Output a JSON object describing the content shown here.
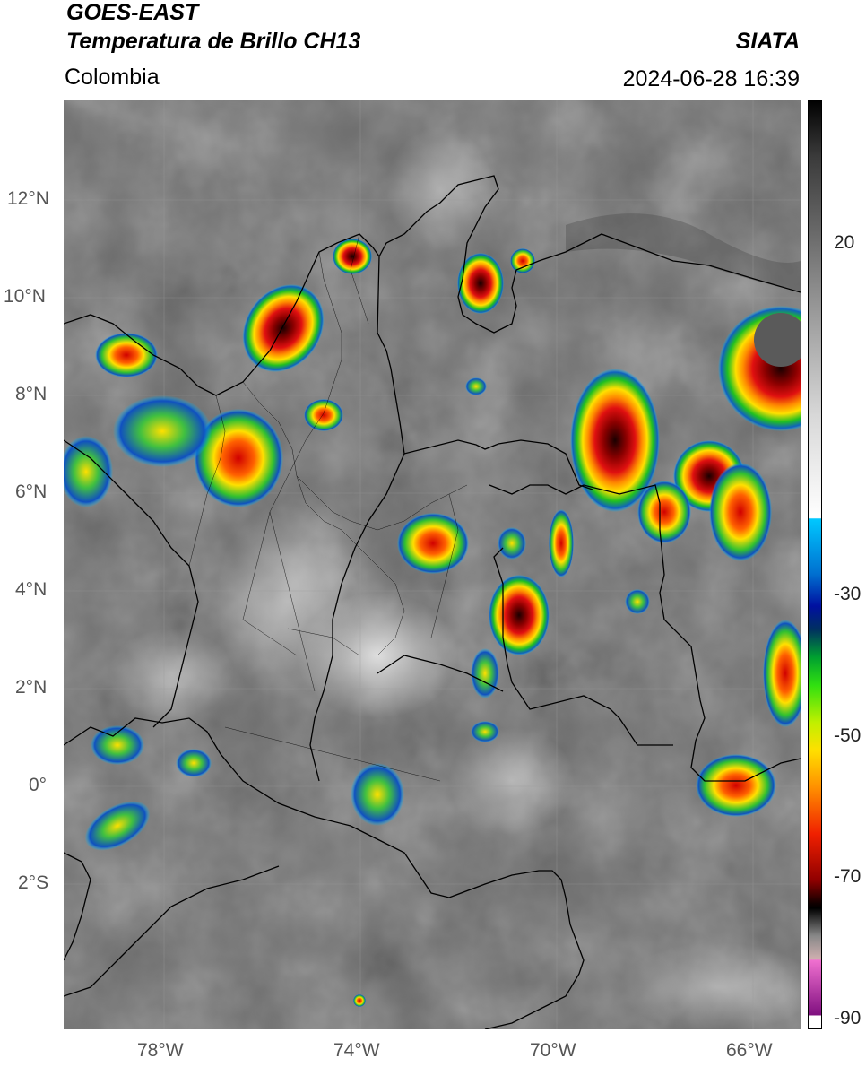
{
  "header": {
    "satellite": "GOES-EAST",
    "product": "Temperatura de Brillo CH13",
    "organization": "SIATA",
    "region": "Colombia",
    "datetime": "2024-06-28 16:39"
  },
  "map": {
    "lat_range": [
      -4.9,
      14.1
    ],
    "lon_range": [
      -80.0,
      -65.0
    ],
    "lat_ticks": [
      "12°N",
      "10°N",
      "8°N",
      "6°N",
      "4°N",
      "2°N",
      "0°",
      "2°S"
    ],
    "lon_ticks": [
      "78°W",
      "74°W",
      "70°W",
      "66°W"
    ],
    "base_color": "#6e6e6e",
    "storm_cells": [
      {
        "name": "cell-caribbean-coast",
        "lon": -75.6,
        "lat": 9.3,
        "peak": "dark-red"
      },
      {
        "name": "cell-magdalena",
        "lon": -71.5,
        "lat": 10.3,
        "peak": "dark-red"
      },
      {
        "name": "cell-venezuela-west",
        "lon": -68.7,
        "lat": 7.5,
        "peak": "black-core"
      },
      {
        "name": "cell-venezuela-east",
        "lon": -65.5,
        "lat": 8.6,
        "peak": "black-core"
      },
      {
        "name": "cell-meta",
        "lon": -72.8,
        "lat": 4.9,
        "peak": "red"
      },
      {
        "name": "cell-guaviare",
        "lon": -70.7,
        "lat": 3.4,
        "peak": "dark-red"
      },
      {
        "name": "cell-amazonas-east",
        "lon": -66.5,
        "lat": 0.0,
        "peak": "red"
      },
      {
        "name": "cell-choco",
        "lon": -76.8,
        "lat": 6.8,
        "peak": "orange"
      }
    ]
  },
  "colorbar": {
    "ticks": [
      "20",
      "-30",
      "-50",
      "-70",
      "-90"
    ],
    "stops": [
      "#000000",
      "#444444",
      "#888888",
      "#cccccc",
      "#ffffff",
      "#00bfff",
      "#0030a0",
      "#00c000",
      "#ffff00",
      "#ff8000",
      "#cc0000",
      "#200000",
      "#a0a0a0",
      "#e060c0",
      "#800080",
      "#ffffff"
    ]
  }
}
